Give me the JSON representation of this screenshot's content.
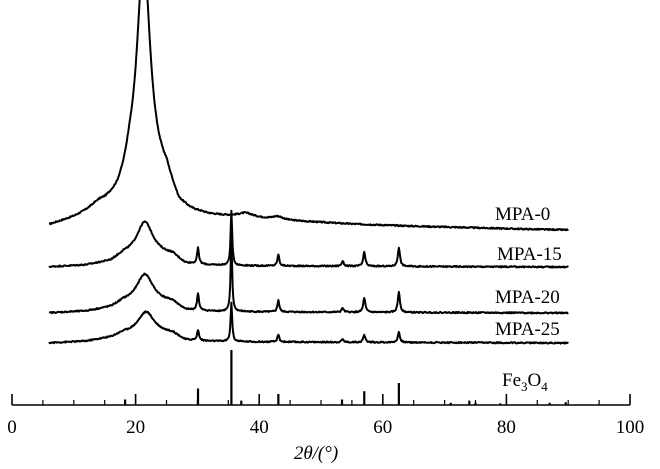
{
  "chart_data": {
    "type": "line",
    "xlabel": "2θ/(°)",
    "xlim": [
      0,
      100
    ],
    "x_major_ticks": [
      0,
      20,
      40,
      60,
      80,
      100
    ],
    "x_minor_step": 5,
    "y_axis_visible": false,
    "grid": false,
    "series": [
      {
        "name": "MPA-0",
        "color": "#000000",
        "baseline": 0,
        "background": [
          [
            6,
            0.1
          ],
          [
            10,
            0.23
          ],
          [
            13,
            0.36
          ],
          [
            15,
            0.45
          ],
          [
            17,
            0.6
          ],
          [
            18,
            0.78
          ],
          [
            19,
            1.05
          ],
          [
            25,
            0.95
          ],
          [
            27,
            0.45
          ],
          [
            29,
            0.34
          ],
          [
            32,
            0.28
          ],
          [
            35,
            0.26
          ],
          [
            40,
            0.23
          ],
          [
            45,
            0.19
          ],
          [
            55,
            0.13
          ],
          [
            65,
            0.09
          ],
          [
            75,
            0.06
          ],
          [
            85,
            0.03
          ],
          [
            90,
            0.02
          ]
        ],
        "peaks": [
          {
            "x": 21.3,
            "h": 4.25,
            "w": 1.3
          },
          {
            "x": 14.0,
            "h": 0.08,
            "w": 1.5
          },
          {
            "x": 37.8,
            "h": 0.08,
            "w": 1.5
          },
          {
            "x": 43.0,
            "h": 0.06,
            "w": 1.0
          }
        ]
      },
      {
        "name": "MPA-15",
        "color": "#000000",
        "baseline": 0,
        "background": [
          [
            6,
            0.0
          ],
          [
            12,
            0.03
          ],
          [
            16,
            0.1
          ],
          [
            18,
            0.22
          ],
          [
            26,
            0.22
          ],
          [
            28,
            0.06
          ],
          [
            32,
            0.03
          ],
          [
            40,
            0.02
          ],
          [
            90,
            0.0
          ]
        ],
        "peaks": [
          {
            "x": 21.5,
            "h": 0.65,
            "w": 1.6
          },
          {
            "x": 30.1,
            "h": 0.3,
            "w": 0.18
          },
          {
            "x": 35.5,
            "h": 1.05,
            "w": 0.15
          },
          {
            "x": 43.1,
            "h": 0.22,
            "w": 0.18
          },
          {
            "x": 53.5,
            "h": 0.1,
            "w": 0.2
          },
          {
            "x": 57.0,
            "h": 0.27,
            "w": 0.2
          },
          {
            "x": 62.6,
            "h": 0.37,
            "w": 0.2
          }
        ]
      },
      {
        "name": "MPA-20",
        "color": "#000000",
        "baseline": 0,
        "background": [
          [
            6,
            0.0
          ],
          [
            12,
            0.03
          ],
          [
            16,
            0.1
          ],
          [
            18,
            0.2
          ],
          [
            26,
            0.2
          ],
          [
            28,
            0.05
          ],
          [
            32,
            0.03
          ],
          [
            40,
            0.02
          ],
          [
            90,
            0.0
          ]
        ],
        "peaks": [
          {
            "x": 21.5,
            "h": 0.55,
            "w": 1.6
          },
          {
            "x": 30.1,
            "h": 0.33,
            "w": 0.18
          },
          {
            "x": 35.5,
            "h": 1.35,
            "w": 0.15
          },
          {
            "x": 43.1,
            "h": 0.23,
            "w": 0.18
          },
          {
            "x": 53.5,
            "h": 0.08,
            "w": 0.2
          },
          {
            "x": 57.0,
            "h": 0.28,
            "w": 0.2
          },
          {
            "x": 62.6,
            "h": 0.4,
            "w": 0.2
          }
        ]
      },
      {
        "name": "MPA-25",
        "color": "#000000",
        "baseline": 0,
        "background": [
          [
            6,
            0.0
          ],
          [
            12,
            0.03
          ],
          [
            16,
            0.1
          ],
          [
            18,
            0.18
          ],
          [
            26,
            0.18
          ],
          [
            28,
            0.05
          ],
          [
            32,
            0.03
          ],
          [
            40,
            0.02
          ],
          [
            90,
            0.0
          ]
        ],
        "peaks": [
          {
            "x": 21.7,
            "h": 0.42,
            "w": 1.6
          },
          {
            "x": 30.1,
            "h": 0.2,
            "w": 0.18
          },
          {
            "x": 35.5,
            "h": 0.75,
            "w": 0.15
          },
          {
            "x": 43.1,
            "h": 0.14,
            "w": 0.18
          },
          {
            "x": 53.5,
            "h": 0.06,
            "w": 0.2
          },
          {
            "x": 57.0,
            "h": 0.14,
            "w": 0.2
          },
          {
            "x": 62.6,
            "h": 0.2,
            "w": 0.2
          }
        ]
      }
    ],
    "reference": {
      "name": "Fe3O4",
      "name_main": "Fe",
      "name_sub1": "3",
      "name_mid": "O",
      "name_sub2": "4",
      "lines": [
        {
          "x": 18.3,
          "h": 0.1
        },
        {
          "x": 30.1,
          "h": 0.3
        },
        {
          "x": 35.5,
          "h": 1.0
        },
        {
          "x": 37.1,
          "h": 0.08
        },
        {
          "x": 43.1,
          "h": 0.2
        },
        {
          "x": 53.4,
          "h": 0.1
        },
        {
          "x": 57.0,
          "h": 0.25
        },
        {
          "x": 62.6,
          "h": 0.4
        },
        {
          "x": 71.0,
          "h": 0.04
        },
        {
          "x": 74.0,
          "h": 0.08
        },
        {
          "x": 75.0,
          "h": 0.04
        },
        {
          "x": 79.0,
          "h": 0.03
        },
        {
          "x": 87.0,
          "h": 0.04
        },
        {
          "x": 89.6,
          "h": 0.05
        }
      ]
    }
  }
}
